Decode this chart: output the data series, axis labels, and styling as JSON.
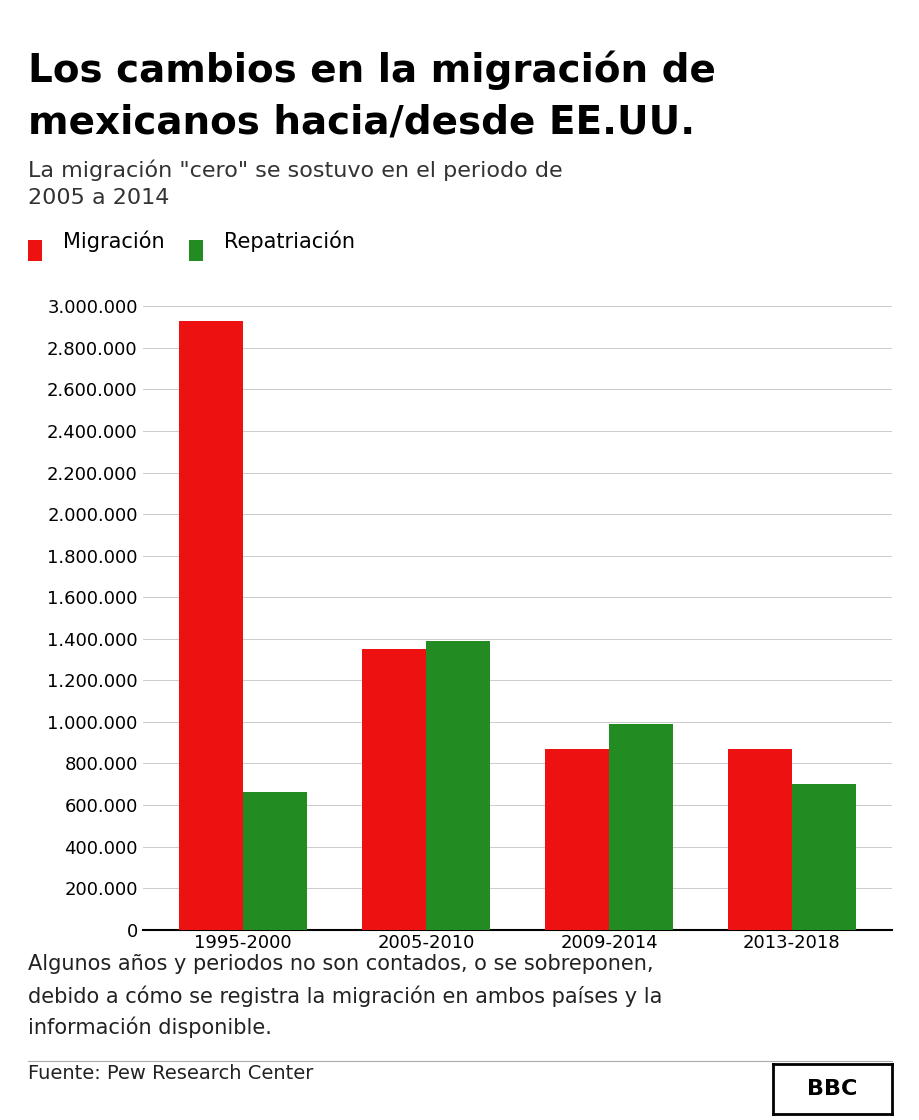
{
  "title_line1": "Los cambios en la migración de",
  "title_line2": "mexicanos hacia/desde EE.UU.",
  "subtitle_line1": "La migración \"cero\" se sostuvo en el periodo de",
  "subtitle_line2": "2005 a 2014",
  "legend_labels": [
    "Migración",
    "Repatriación"
  ],
  "categories": [
    "1995-2000",
    "2005-2010",
    "2009-2014",
    "2013-2018"
  ],
  "migracion": [
    2930000,
    1350000,
    870000,
    870000
  ],
  "repatriacion": [
    660000,
    1390000,
    990000,
    700000
  ],
  "bar_color_migracion": "#ee1111",
  "bar_color_repatriacion": "#228B22",
  "ylim": [
    0,
    3100000
  ],
  "yticks": [
    0,
    200000,
    400000,
    600000,
    800000,
    1000000,
    1200000,
    1400000,
    1600000,
    1800000,
    2000000,
    2200000,
    2400000,
    2600000,
    2800000,
    3000000
  ],
  "footnote_line1": "Algunos años y periodos no son contados, o se sobreponen,",
  "footnote_line2": "debido a cómo se registra la migración en ambos países y la",
  "footnote_line3": "información disponible.",
  "source": "Fuente: Pew Research Center",
  "bbc_label": "BBC",
  "background_color": "#ffffff",
  "title_fontsize": 28,
  "subtitle_fontsize": 16,
  "tick_fontsize": 13,
  "legend_fontsize": 15,
  "footnote_fontsize": 15,
  "source_fontsize": 14,
  "bar_width": 0.35
}
